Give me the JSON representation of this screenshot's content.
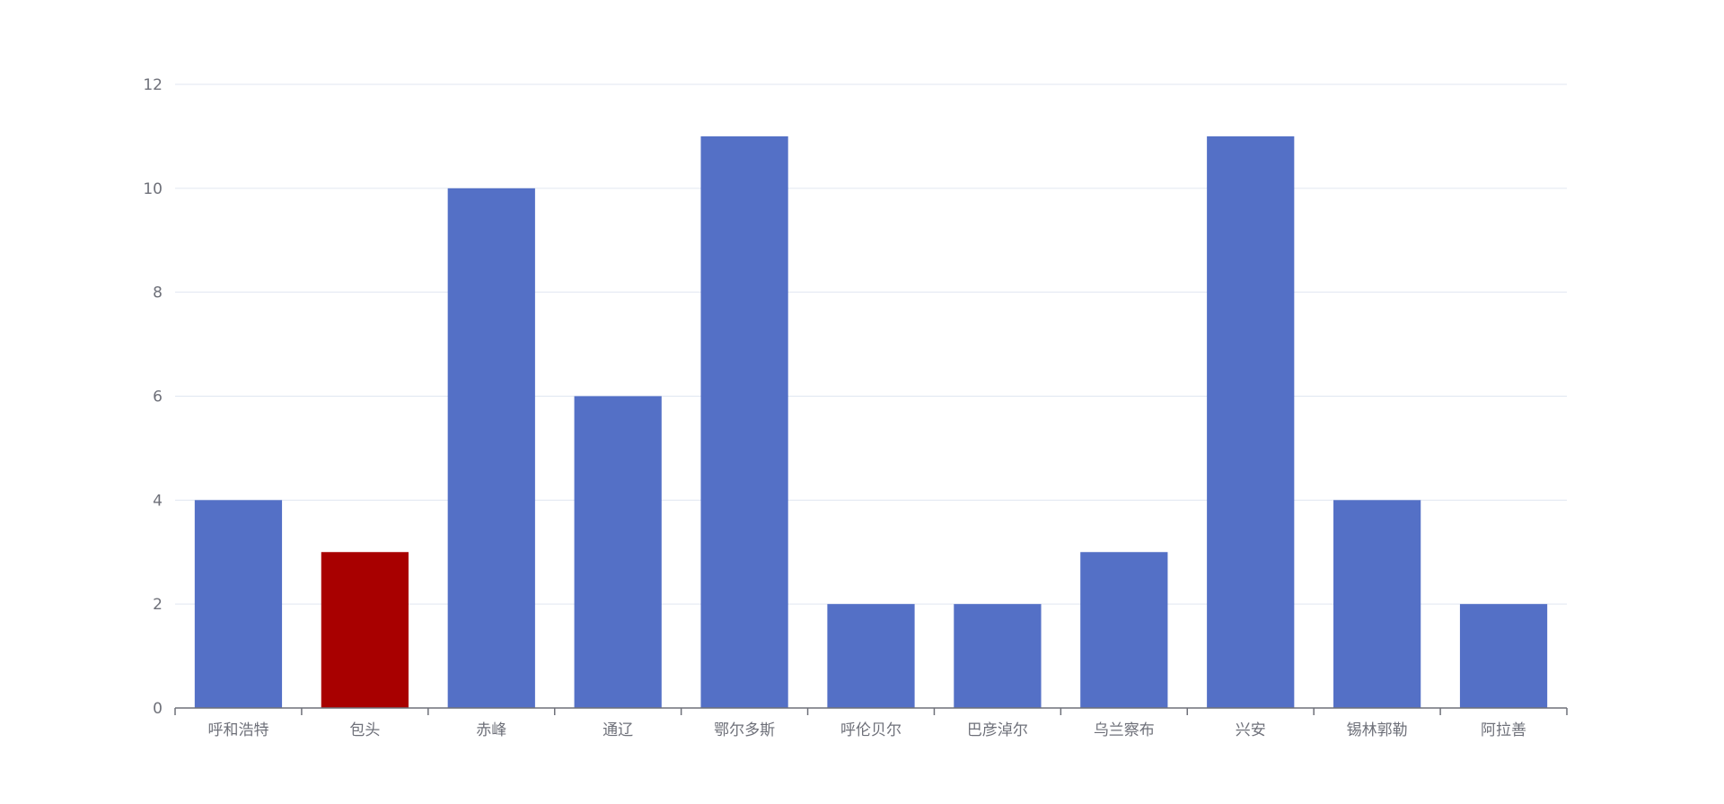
{
  "chart_data": {
    "type": "bar",
    "title": "",
    "xlabel": "",
    "ylabel": "",
    "categories": [
      "呼和浩特",
      "包头",
      "赤峰",
      "通辽",
      "鄂尔多斯",
      "呼伦贝尔",
      "巴彦淖尔",
      "乌兰察布",
      "兴安",
      "锡林郭勒",
      "阿拉善"
    ],
    "values": [
      4,
      3,
      10,
      6,
      11,
      2,
      2,
      3,
      11,
      4,
      2
    ],
    "highlight_index": 1,
    "ylim": [
      0,
      12
    ],
    "yticks": [
      0,
      2,
      4,
      6,
      8,
      10,
      12
    ],
    "grid": true,
    "legend": "none",
    "colors": {
      "bar": "#5470c6",
      "highlight": "#a80000",
      "grid": "#e0e6f1",
      "axis": "#6e7079",
      "label": "#6e7079"
    }
  }
}
